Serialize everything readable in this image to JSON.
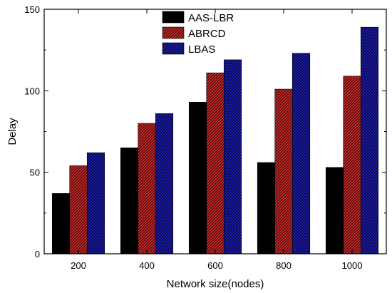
{
  "chart_data": {
    "type": "bar",
    "title": "",
    "xlabel": "Network size(nodes)",
    "ylabel": "Delay",
    "categories": [
      "200",
      "400",
      "600",
      "800",
      "1000"
    ],
    "ylim": [
      0,
      150
    ],
    "yticks": [
      0,
      50,
      100,
      150
    ],
    "grid": false,
    "legend_position": "top-left",
    "series": [
      {
        "name": "AAS-LBR",
        "color": "#000000",
        "pattern": "solid",
        "values": [
          37,
          65,
          93,
          56,
          53
        ]
      },
      {
        "name": "ABRCD",
        "color": "#d42a2a",
        "pattern": "hatch",
        "values": [
          54,
          80,
          111,
          101,
          109
        ]
      },
      {
        "name": "LBAS",
        "color": "#2a2ad0",
        "pattern": "crosshatch",
        "values": [
          62,
          86,
          119,
          123,
          139
        ]
      }
    ]
  }
}
